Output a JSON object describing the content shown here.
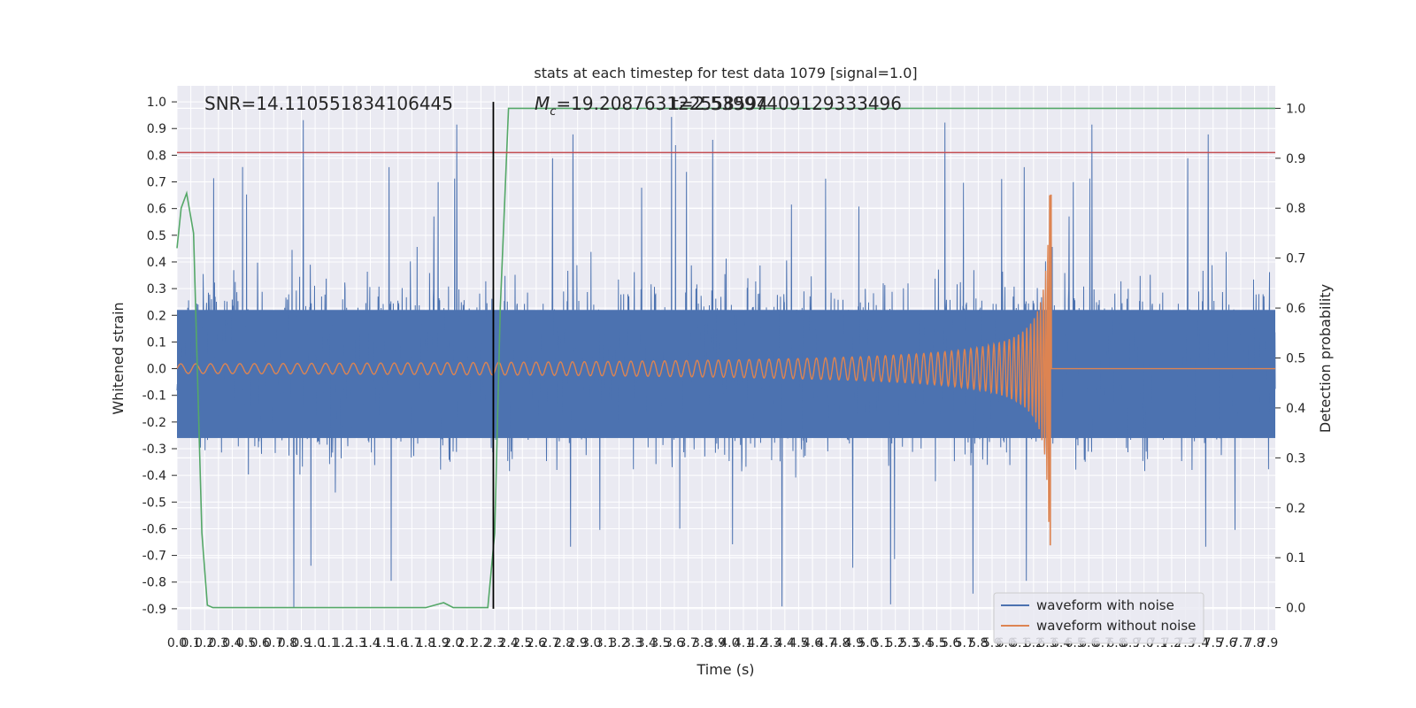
{
  "chart_data": {
    "type": "line",
    "title": "stats at each timestep for test data 1079 [signal=1.0]",
    "xlabel": "Time (s)",
    "ylabel": "Whitened strain",
    "ylabel_right": "Detection probability",
    "xlim": [
      0.0,
      7.95
    ],
    "ylim": [
      -0.98,
      1.06
    ],
    "ylim_right": [
      -0.045,
      1.045
    ],
    "x_ticks": [
      "0.0",
      "0.1",
      "0.2",
      "0.3",
      "0.4",
      "0.5",
      "0.6",
      "0.7",
      "0.8",
      "0.9",
      "1.0",
      "1.1",
      "1.2",
      "1.3",
      "1.4",
      "1.5",
      "1.6",
      "1.7",
      "1.8",
      "1.9",
      "2.0",
      "2.1",
      "2.2",
      "2.3",
      "2.4",
      "2.5",
      "2.6",
      "2.7",
      "2.8",
      "2.9",
      "3.0",
      "3.1",
      "3.2",
      "3.3",
      "3.4",
      "3.5",
      "3.6",
      "3.7",
      "3.8",
      "3.9",
      "4.0",
      "4.1",
      "4.2",
      "4.3",
      "4.4",
      "4.5",
      "4.6",
      "4.7",
      "4.8",
      "4.9",
      "5.0",
      "5.1",
      "5.2",
      "5.3",
      "5.4",
      "5.5",
      "5.6",
      "5.7",
      "5.8",
      "5.9",
      "6.0",
      "6.1",
      "6.2",
      "6.3",
      "6.4",
      "6.5",
      "6.6",
      "6.7",
      "6.8",
      "6.9",
      "7.0",
      "7.1",
      "7.2",
      "7.3",
      "7.4",
      "7.5",
      "7.6",
      "7.7",
      "7.8",
      "7.9"
    ],
    "y_ticks": [
      "1.0",
      "0.9",
      "0.8",
      "0.7",
      "0.6",
      "0.5",
      "0.4",
      "0.3",
      "0.2",
      "0.1",
      "0.0",
      "-0.1",
      "-0.2",
      "-0.3",
      "-0.4",
      "-0.5",
      "-0.6",
      "-0.7",
      "-0.8",
      "-0.9"
    ],
    "y_ticks_right": [
      "1.0",
      "0.9",
      "0.8",
      "0.7",
      "0.6",
      "0.5",
      "0.4",
      "0.3",
      "0.2",
      "0.1",
      "0.0"
    ],
    "grid": true,
    "legend_position": "bottom-right",
    "annotations": {
      "snr": "SNR=14.110551834106445",
      "mc": "=19.208763122558594",
      "mc_symbol": "M",
      "mc_sub": "c",
      "overlap": "t=2.53997409129333496"
    },
    "series": [
      {
        "name": "waveform with noise",
        "axis": "left",
        "color": "#4c72b0",
        "description": "dense noisy strain spanning roughly -0.9 to 1.0"
      },
      {
        "name": "waveform without noise",
        "axis": "left",
        "color": "#dd8452",
        "chirp_start": 0.0,
        "merger_time": 6.33,
        "peak": 0.65,
        "trough": -0.66
      },
      {
        "name": "detection probability",
        "axis": "right",
        "color": "#55a868",
        "x": [
          0.0,
          0.03,
          0.07,
          0.12,
          0.18,
          0.22,
          0.26,
          0.3,
          0.4,
          1.8,
          1.93,
          2.0,
          2.1,
          2.2,
          2.25,
          2.3,
          2.34,
          2.4,
          7.95
        ],
        "y": [
          0.72,
          0.8,
          0.83,
          0.75,
          0.15,
          0.005,
          0.0,
          0.0,
          0.0,
          0.0,
          0.01,
          0.0,
          0.0,
          0.0,
          0.0,
          0.15,
          0.6,
          1.0,
          1.0
        ]
      }
    ],
    "reference_lines": [
      {
        "kind": "threshold",
        "axis": "left",
        "y": 0.81,
        "color": "#c44e52"
      },
      {
        "kind": "vertical",
        "x": 2.29,
        "color": "#000000"
      }
    ],
    "colors": {
      "plot_bg": "#eaeaf2",
      "grid": "#ffffff",
      "noise": "#4c72b0",
      "clean": "#dd8452",
      "prob": "#55a868",
      "threshold": "#c44e52"
    }
  }
}
